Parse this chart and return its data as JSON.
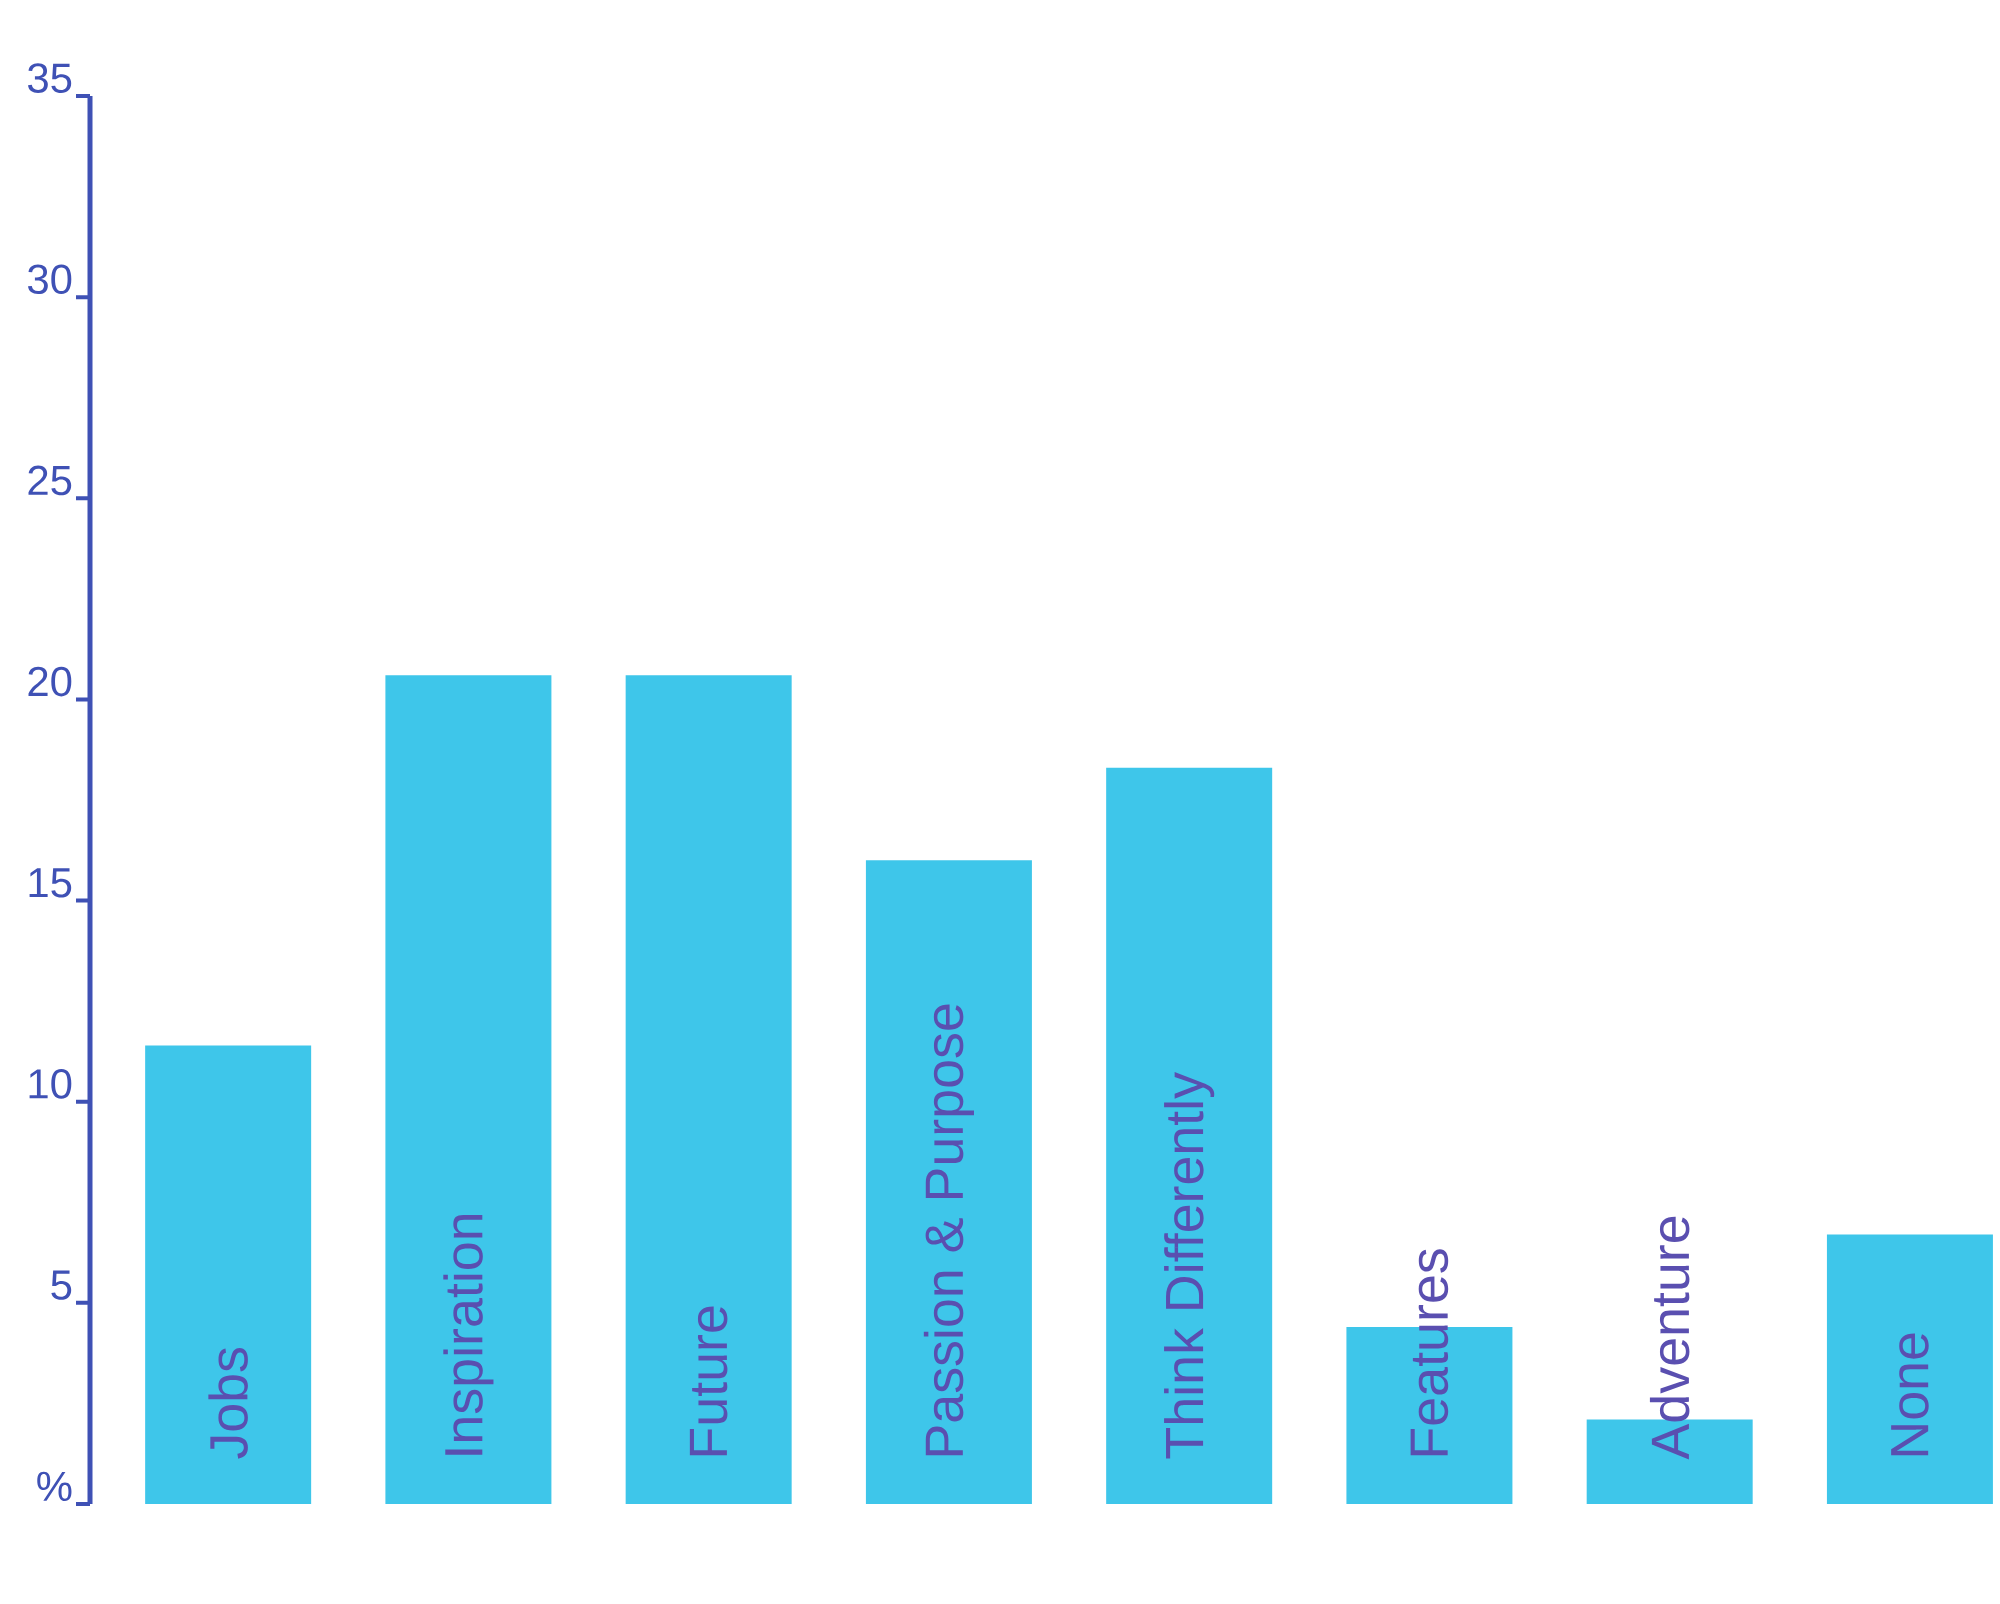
{
  "chart_data": {
    "type": "bar",
    "categories": [
      "Jobs",
      "Inspiration",
      "Future",
      "Passion & Purpose",
      "Think Differently",
      "Features",
      "Adventure",
      "None"
    ],
    "values": [
      11.4,
      20.6,
      20.6,
      16.0,
      18.3,
      4.4,
      2.1,
      6.7
    ],
    "color": "#3ec6ea",
    "ylim": [
      0,
      35
    ],
    "yticks": [
      {
        "value": 0,
        "label": "%"
      },
      5,
      10,
      15,
      20,
      25,
      30,
      35
    ],
    "grid": false
  }
}
